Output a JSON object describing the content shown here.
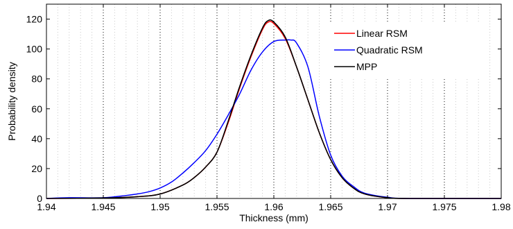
{
  "chart_data": {
    "type": "line",
    "xlabel": "Thickness (mm)",
    "ylabel": "Probability density",
    "xlim": [
      1.94,
      1.98
    ],
    "ylim": [
      0,
      130
    ],
    "x_ticks": [
      "1.94",
      "1.945",
      "1.95",
      "1.955",
      "1.96",
      "1.965",
      "1.97",
      "1.975",
      "1.98"
    ],
    "y_ticks": [
      "0",
      "20",
      "40",
      "60",
      "80",
      "100",
      "120"
    ],
    "grid": "dotted vertical major and minor lines",
    "legend_position": "top-right",
    "series": [
      {
        "name": "Linear RSM",
        "color": "#ff0000",
        "x": [
          1.94,
          1.945,
          1.948,
          1.95,
          1.952,
          1.953,
          1.954,
          1.955,
          1.956,
          1.957,
          1.958,
          1.959,
          1.9595,
          1.96,
          1.961,
          1.962,
          1.963,
          1.964,
          1.965,
          1.966,
          1.967,
          1.968,
          1.97,
          1.972,
          1.98
        ],
        "y": [
          0,
          0.3,
          1.2,
          3,
          9,
          14,
          21,
          31,
          51,
          74,
          95,
          113,
          118,
          117,
          107,
          88,
          66,
          44,
          26,
          14,
          7,
          3,
          0.5,
          0,
          0
        ]
      },
      {
        "name": "Quadratic RSM",
        "color": "#0000ff",
        "x": [
          1.94,
          1.942,
          1.945,
          1.947,
          1.948,
          1.949,
          1.95,
          1.951,
          1.952,
          1.953,
          1.954,
          1.955,
          1.956,
          1.957,
          1.958,
          1.959,
          1.96,
          1.961,
          1.9615,
          1.962,
          1.963,
          1.964,
          1.965,
          1.966,
          1.967,
          1.968,
          1.97,
          1.972,
          1.98
        ],
        "y": [
          0,
          0.5,
          0.5,
          2,
          3,
          4.5,
          7,
          11,
          17,
          24,
          32,
          43,
          56,
          70,
          86,
          98,
          105,
          106,
          106,
          104,
          88,
          55,
          29,
          15,
          8,
          3.5,
          0.8,
          0,
          0
        ]
      },
      {
        "name": "MPP",
        "color": "#000000",
        "x": [
          1.94,
          1.945,
          1.948,
          1.95,
          1.952,
          1.953,
          1.954,
          1.955,
          1.956,
          1.957,
          1.958,
          1.959,
          1.9595,
          1.96,
          1.961,
          1.962,
          1.963,
          1.964,
          1.965,
          1.966,
          1.967,
          1.968,
          1.97,
          1.972,
          1.98
        ],
        "y": [
          0,
          0.3,
          1.2,
          3,
          9,
          14,
          21,
          31,
          52,
          75,
          96,
          114,
          119,
          118,
          108,
          88,
          66,
          44,
          26,
          14,
          7,
          3,
          0.5,
          0,
          0
        ]
      }
    ]
  }
}
